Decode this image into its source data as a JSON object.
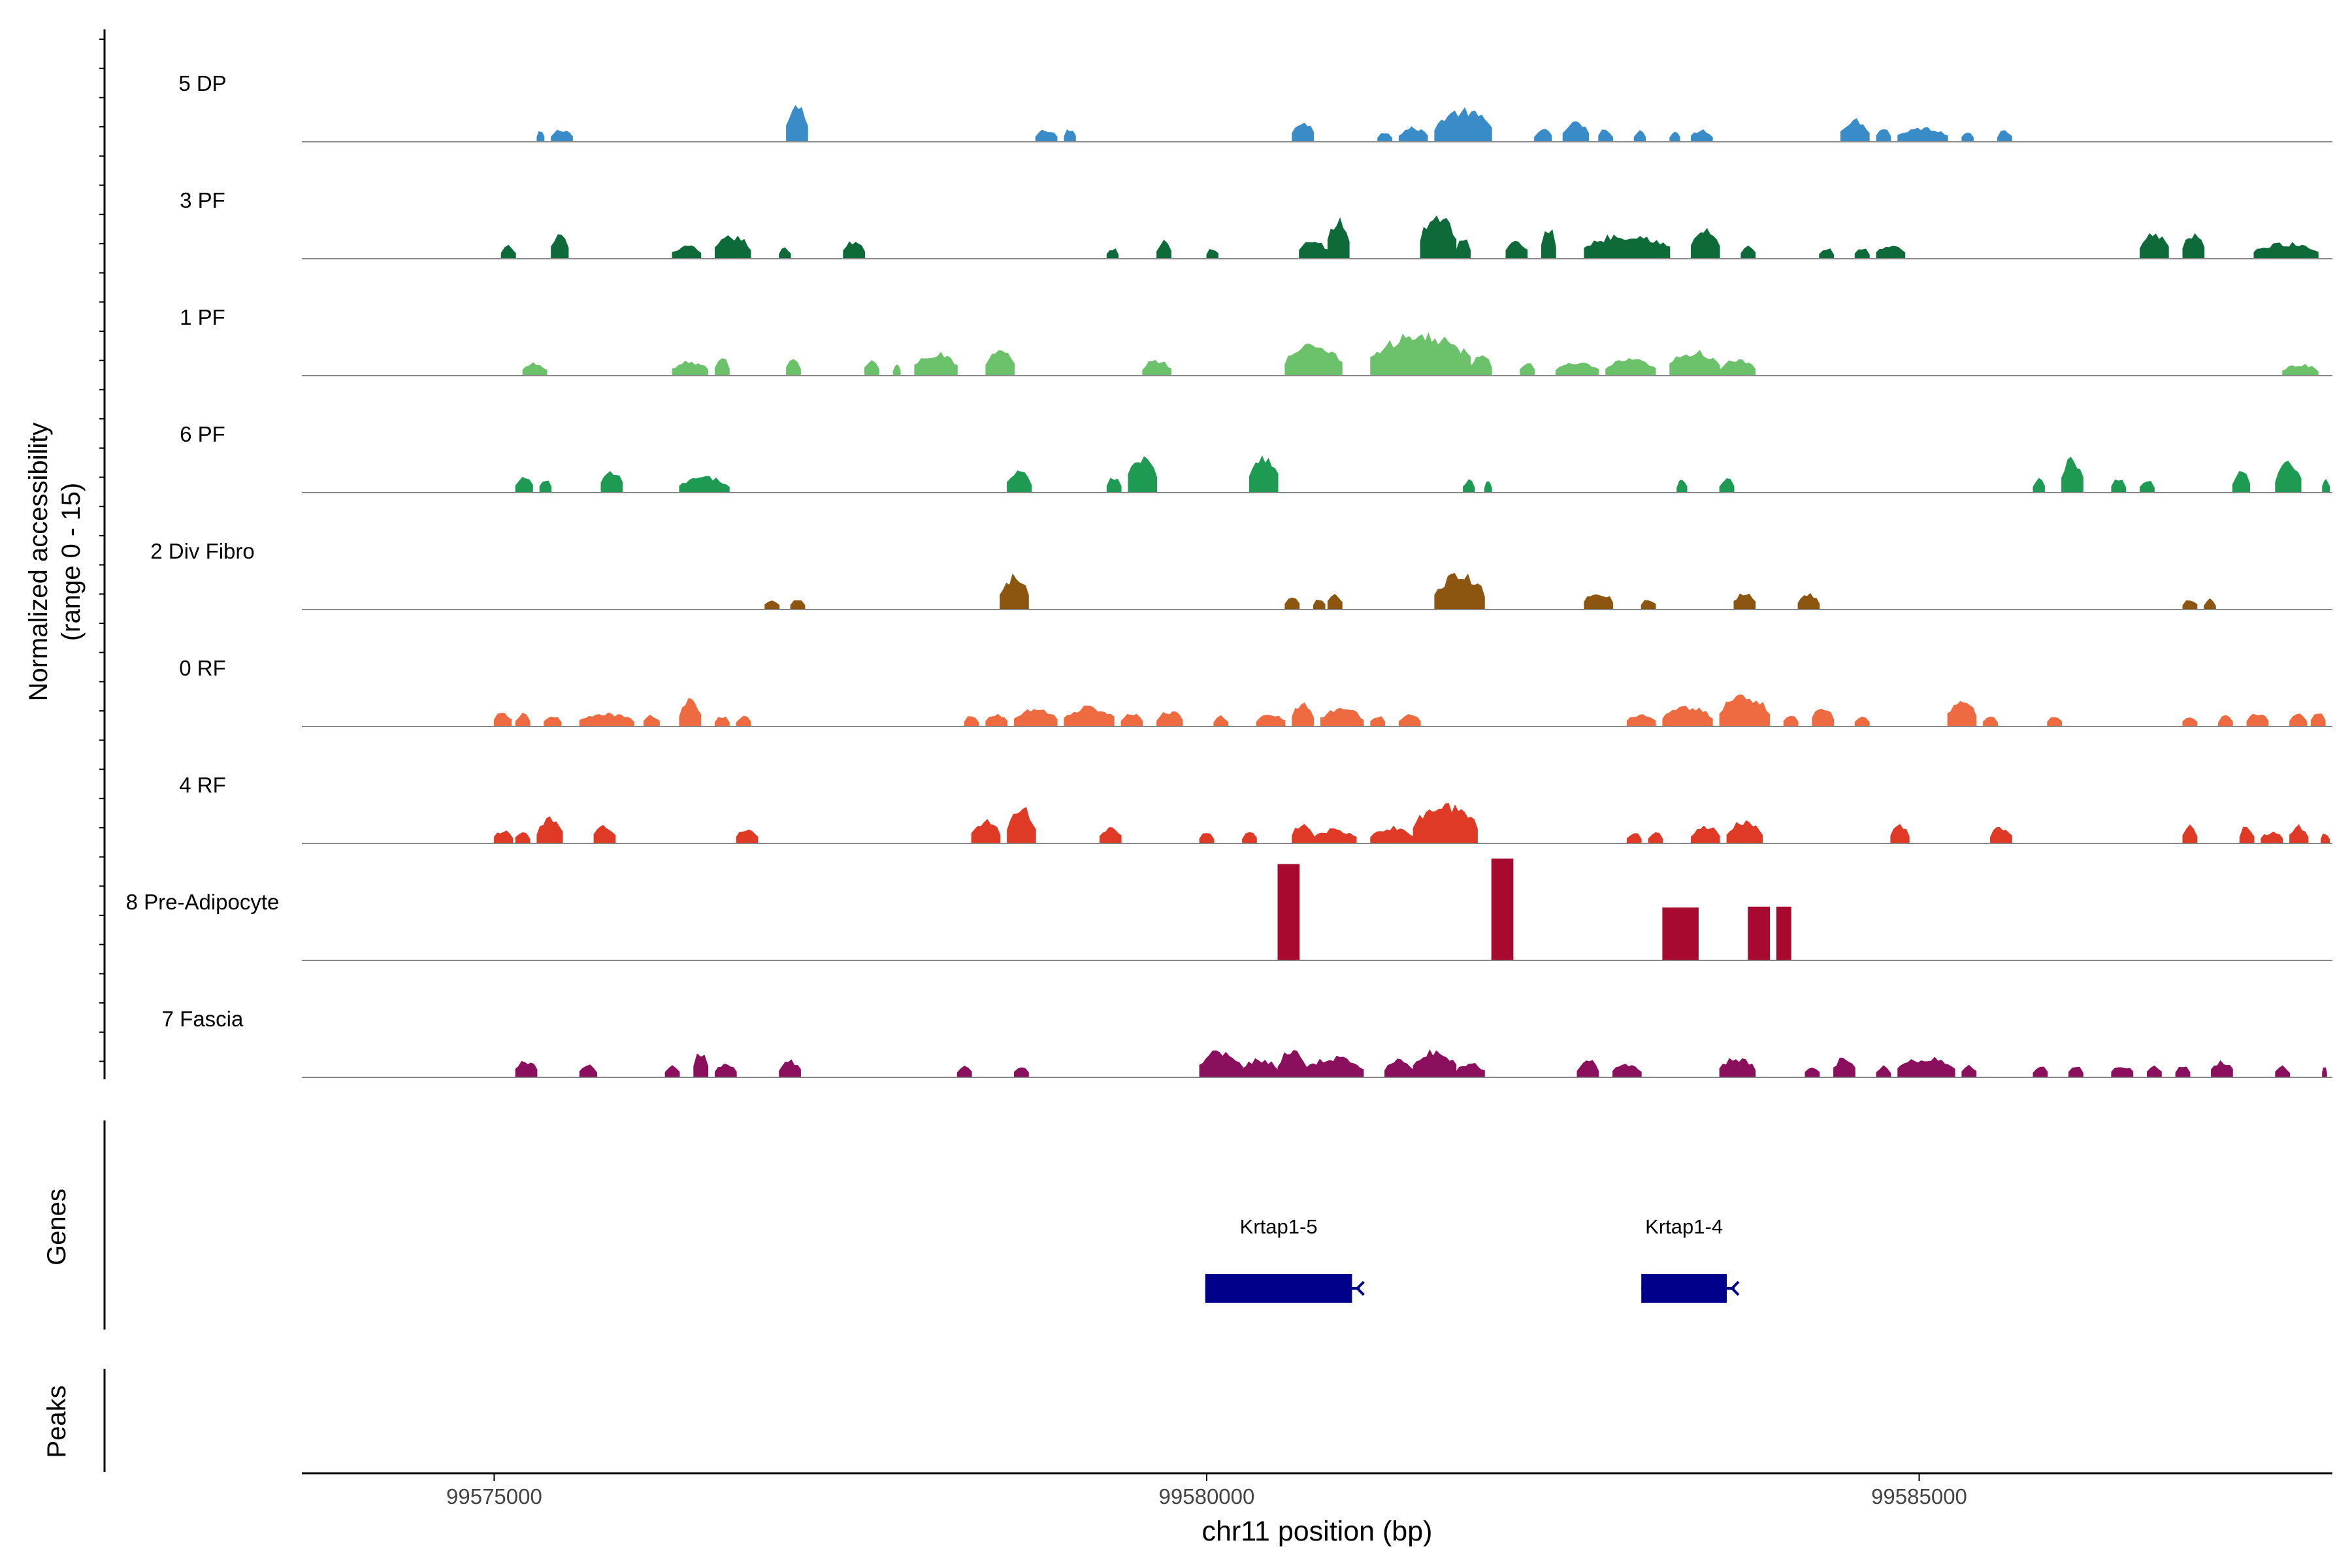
{
  "chart_data": {
    "type": "area",
    "ylabel_main": "Normalized accessibility",
    "ylabel_range": "(range 0 - 15)",
    "ylim": [
      0,
      15
    ],
    "xlabel": "chr11 position (bp)",
    "xlim": [
      99573650,
      99587900
    ],
    "xticks": [
      {
        "value": 99575000,
        "label": "99575000"
      },
      {
        "value": 99580000,
        "label": "99580000"
      },
      {
        "value": 99585000,
        "label": "99585000"
      }
    ],
    "series": [
      {
        "name": "5 DP",
        "color": "#3A8CC8",
        "peaks": [
          [
            99575300,
            99575350,
            1.5
          ],
          [
            99575400,
            99575550,
            1.8
          ],
          [
            99577050,
            99577200,
            5.0
          ],
          [
            99578800,
            99578950,
            1.7
          ],
          [
            99579000,
            99579080,
            1.8
          ],
          [
            99580600,
            99580750,
            3.0
          ],
          [
            99581200,
            99581300,
            1.5
          ],
          [
            99581350,
            99581550,
            2.0
          ],
          [
            99581600,
            99582000,
            4.5
          ],
          [
            99582300,
            99582420,
            1.8
          ],
          [
            99582500,
            99582680,
            2.8
          ],
          [
            99582750,
            99582850,
            1.8
          ],
          [
            99583000,
            99583080,
            1.6
          ],
          [
            99583250,
            99583320,
            1.6
          ],
          [
            99583400,
            99583550,
            1.7
          ],
          [
            99584450,
            99584650,
            3.2
          ],
          [
            99584700,
            99584800,
            2.0
          ],
          [
            99584850,
            99585200,
            2.0
          ],
          [
            99585300,
            99585380,
            1.6
          ],
          [
            99585550,
            99585650,
            1.6
          ]
        ]
      },
      {
        "name": "3 PF",
        "color": "#0E6A38",
        "peaks": [
          [
            99575050,
            99575150,
            1.8
          ],
          [
            99575400,
            99575520,
            3.6
          ],
          [
            99576250,
            99576450,
            1.8
          ],
          [
            99576550,
            99576800,
            3.2
          ],
          [
            99577000,
            99577080,
            1.5
          ],
          [
            99577450,
            99577600,
            2.6
          ],
          [
            99579300,
            99579380,
            1.5
          ],
          [
            99579650,
            99579750,
            2.5
          ],
          [
            99580000,
            99580080,
            1.5
          ],
          [
            99580650,
            99580850,
            2.6
          ],
          [
            99580850,
            99581000,
            5.5
          ],
          [
            99581500,
            99581750,
            6.4
          ],
          [
            99581750,
            99581850,
            3.0
          ],
          [
            99582100,
            99582250,
            2.5
          ],
          [
            99582350,
            99582450,
            4.5
          ],
          [
            99582650,
            99583250,
            3.5
          ],
          [
            99583400,
            99583600,
            4.2
          ],
          [
            99583750,
            99583850,
            1.8
          ],
          [
            99584300,
            99584400,
            1.5
          ],
          [
            99584550,
            99584650,
            1.5
          ],
          [
            99584700,
            99584900,
            1.8
          ],
          [
            99586550,
            99586750,
            3.5
          ],
          [
            99586850,
            99587000,
            3.7
          ],
          [
            99587350,
            99587800,
            2.2
          ]
        ]
      },
      {
        "name": "1 PF",
        "color": "#6CC26A",
        "peaks": [
          [
            99575200,
            99575370,
            1.8
          ],
          [
            99576250,
            99576500,
            2.0
          ],
          [
            99576550,
            99576650,
            2.5
          ],
          [
            99577050,
            99577150,
            2.5
          ],
          [
            99577600,
            99577700,
            2.3
          ],
          [
            99577800,
            99577850,
            1.6
          ],
          [
            99577950,
            99578250,
            3.2
          ],
          [
            99578450,
            99578650,
            3.5
          ],
          [
            99579550,
            99579750,
            2.2
          ],
          [
            99580550,
            99580950,
            4.5
          ],
          [
            99581150,
            99581850,
            5.8
          ],
          [
            99581850,
            99582000,
            3.0
          ],
          [
            99582200,
            99582300,
            2.0
          ],
          [
            99582450,
            99582750,
            1.8
          ],
          [
            99582800,
            99583150,
            2.3
          ],
          [
            99583250,
            99583600,
            3.5
          ],
          [
            99583600,
            99583850,
            2.2
          ],
          [
            99587550,
            99587800,
            1.6
          ]
        ]
      },
      {
        "name": "6 PF",
        "color": "#1E9A53",
        "peaks": [
          [
            99575150,
            99575270,
            2.2
          ],
          [
            99575320,
            99575400,
            1.9
          ],
          [
            99575750,
            99575900,
            3.0
          ],
          [
            99576300,
            99576650,
            2.2
          ],
          [
            99578600,
            99578770,
            3.0
          ],
          [
            99579300,
            99579400,
            2.3
          ],
          [
            99579450,
            99579650,
            5.5
          ],
          [
            99580300,
            99580500,
            5.5
          ],
          [
            99581800,
            99581880,
            1.8
          ],
          [
            99581950,
            99582000,
            1.6
          ],
          [
            99583300,
            99583370,
            1.8
          ],
          [
            99583600,
            99583700,
            2.0
          ],
          [
            99585800,
            99585880,
            2.0
          ],
          [
            99586000,
            99586150,
            4.8
          ],
          [
            99586350,
            99586450,
            2.0
          ],
          [
            99586550,
            99586650,
            1.7
          ],
          [
            99587200,
            99587320,
            3.0
          ],
          [
            99587500,
            99587680,
            4.2
          ],
          [
            99587830,
            99587880,
            2.0
          ]
        ]
      },
      {
        "name": "2 Div Fibro",
        "color": "#8C5510",
        "peaks": [
          [
            99576900,
            99577000,
            1.5
          ],
          [
            99577080,
            99577180,
            1.5
          ],
          [
            99578550,
            99578750,
            4.8
          ],
          [
            99580550,
            99580650,
            1.7
          ],
          [
            99580750,
            99580830,
            1.5
          ],
          [
            99580850,
            99580950,
            2.4
          ],
          [
            99581600,
            99581950,
            5.0
          ],
          [
            99582650,
            99582850,
            2.5
          ],
          [
            99583050,
            99583150,
            1.6
          ],
          [
            99583700,
            99583850,
            2.4
          ],
          [
            99584150,
            99584300,
            2.2
          ],
          [
            99586850,
            99586950,
            1.6
          ],
          [
            99587000,
            99587080,
            1.5
          ]
        ]
      },
      {
        "name": "0 RF",
        "color": "#EE6A40",
        "peaks": [
          [
            99575000,
            99575120,
            2.0
          ],
          [
            99575150,
            99575250,
            1.8
          ],
          [
            99575350,
            99575470,
            1.6
          ],
          [
            99575600,
            99575980,
            1.8
          ],
          [
            99576050,
            99576160,
            1.6
          ],
          [
            99576300,
            99576450,
            3.8
          ],
          [
            99576550,
            99576650,
            1.5
          ],
          [
            99576700,
            99576800,
            1.5
          ],
          [
            99578300,
            99578400,
            1.5
          ],
          [
            99578450,
            99578600,
            1.7
          ],
          [
            99578650,
            99578950,
            2.5
          ],
          [
            99579000,
            99579350,
            2.8
          ],
          [
            99579400,
            99579550,
            1.8
          ],
          [
            99579650,
            99579830,
            2.2
          ],
          [
            99580050,
            99580150,
            1.5
          ],
          [
            99580350,
            99580550,
            1.8
          ],
          [
            99580600,
            99580750,
            3.2
          ],
          [
            99580800,
            99581100,
            2.5
          ],
          [
            99581150,
            99581250,
            1.6
          ],
          [
            99581350,
            99581500,
            1.6
          ],
          [
            99582950,
            99583150,
            1.8
          ],
          [
            99583200,
            99583550,
            2.8
          ],
          [
            99583600,
            99583950,
            4.5
          ],
          [
            99584050,
            99584150,
            1.6
          ],
          [
            99584250,
            99584400,
            2.7
          ],
          [
            99584550,
            99584650,
            1.6
          ],
          [
            99585200,
            99585400,
            3.8
          ],
          [
            99585450,
            99585550,
            1.5
          ],
          [
            99585900,
            99586000,
            1.5
          ],
          [
            99586850,
            99586950,
            1.5
          ],
          [
            99587100,
            99587200,
            1.6
          ],
          [
            99587300,
            99587450,
            1.8
          ],
          [
            99587600,
            99587720,
            1.8
          ],
          [
            99587750,
            99587850,
            2.0
          ]
        ]
      },
      {
        "name": "4 RF",
        "color": "#DE3A26",
        "peaks": [
          [
            99575000,
            99575130,
            1.9
          ],
          [
            99575150,
            99575250,
            1.7
          ],
          [
            99575300,
            99575480,
            3.5
          ],
          [
            99575700,
            99575850,
            2.6
          ],
          [
            99576700,
            99576850,
            2.0
          ],
          [
            99578350,
            99578550,
            3.3
          ],
          [
            99578600,
            99578800,
            5.0
          ],
          [
            99579250,
            99579400,
            2.3
          ],
          [
            99579950,
            99580050,
            1.5
          ],
          [
            99580250,
            99580350,
            1.6
          ],
          [
            99580600,
            99580750,
            2.7
          ],
          [
            99580750,
            99581050,
            2.0
          ],
          [
            99581150,
            99581450,
            2.3
          ],
          [
            99581450,
            99581900,
            5.5
          ],
          [
            99582950,
            99583050,
            1.6
          ],
          [
            99583100,
            99583200,
            1.6
          ],
          [
            99583400,
            99583600,
            2.5
          ],
          [
            99583650,
            99583900,
            3.3
          ],
          [
            99584800,
            99584930,
            2.5
          ],
          [
            99585500,
            99585650,
            2.3
          ],
          [
            99586850,
            99586950,
            2.5
          ],
          [
            99587250,
            99587350,
            2.5
          ],
          [
            99587400,
            99587550,
            1.6
          ],
          [
            99587600,
            99587730,
            2.5
          ],
          [
            99587820,
            99587880,
            1.5
          ]
        ]
      },
      {
        "name": "8 Pre-Adipocyte",
        "color": "#A8092F",
        "peaks": [
          [
            99580500,
            99580650,
            12.6
          ],
          [
            99582000,
            99582150,
            13.3
          ],
          [
            99583200,
            99583450,
            6.9
          ],
          [
            99583800,
            99583950,
            7.0
          ],
          [
            99584000,
            99584100,
            7.0
          ]
        ]
      },
      {
        "name": "7 Fascia",
        "color": "#8A0F5C",
        "peaks": [
          [
            99575150,
            99575300,
            2.4
          ],
          [
            99575600,
            99575720,
            1.7
          ],
          [
            99576200,
            99576300,
            1.7
          ],
          [
            99576400,
            99576500,
            3.6
          ],
          [
            99576550,
            99576700,
            1.8
          ],
          [
            99577000,
            99577150,
            2.4
          ],
          [
            99578250,
            99578350,
            1.8
          ],
          [
            99578650,
            99578750,
            1.7
          ],
          [
            99579950,
            99580250,
            3.8
          ],
          [
            99580250,
            99580500,
            2.6
          ],
          [
            99580500,
            99580700,
            3.8
          ],
          [
            99580700,
            99581100,
            2.8
          ],
          [
            99581250,
            99581450,
            2.6
          ],
          [
            99581450,
            99581750,
            3.8
          ],
          [
            99581750,
            99581950,
            2.0
          ],
          [
            99582600,
            99582750,
            2.5
          ],
          [
            99582850,
            99583050,
            2.0
          ],
          [
            99583600,
            99583850,
            2.8
          ],
          [
            99584200,
            99584300,
            1.6
          ],
          [
            99584400,
            99584550,
            2.8
          ],
          [
            99584700,
            99584800,
            1.6
          ],
          [
            99584850,
            99585250,
            2.8
          ],
          [
            99585300,
            99585400,
            1.7
          ],
          [
            99585800,
            99585900,
            1.7
          ],
          [
            99586050,
            99586150,
            1.7
          ],
          [
            99586350,
            99586500,
            1.7
          ],
          [
            99586600,
            99586700,
            1.7
          ],
          [
            99586800,
            99586900,
            1.7
          ],
          [
            99587050,
            99587200,
            2.4
          ],
          [
            99587500,
            99587600,
            1.6
          ],
          [
            99587830,
            99587860,
            1.5
          ]
        ]
      }
    ],
    "genes": {
      "label": "Genes",
      "items": [
        {
          "name": "Krtap1-5",
          "start": 99579990,
          "end": 99581020,
          "strand": "-"
        },
        {
          "name": "Krtap1-4",
          "start": 99583050,
          "end": 99583650,
          "strand": "-"
        }
      ],
      "color": "#00008B"
    },
    "peaks_track": {
      "label": "Peaks"
    }
  }
}
